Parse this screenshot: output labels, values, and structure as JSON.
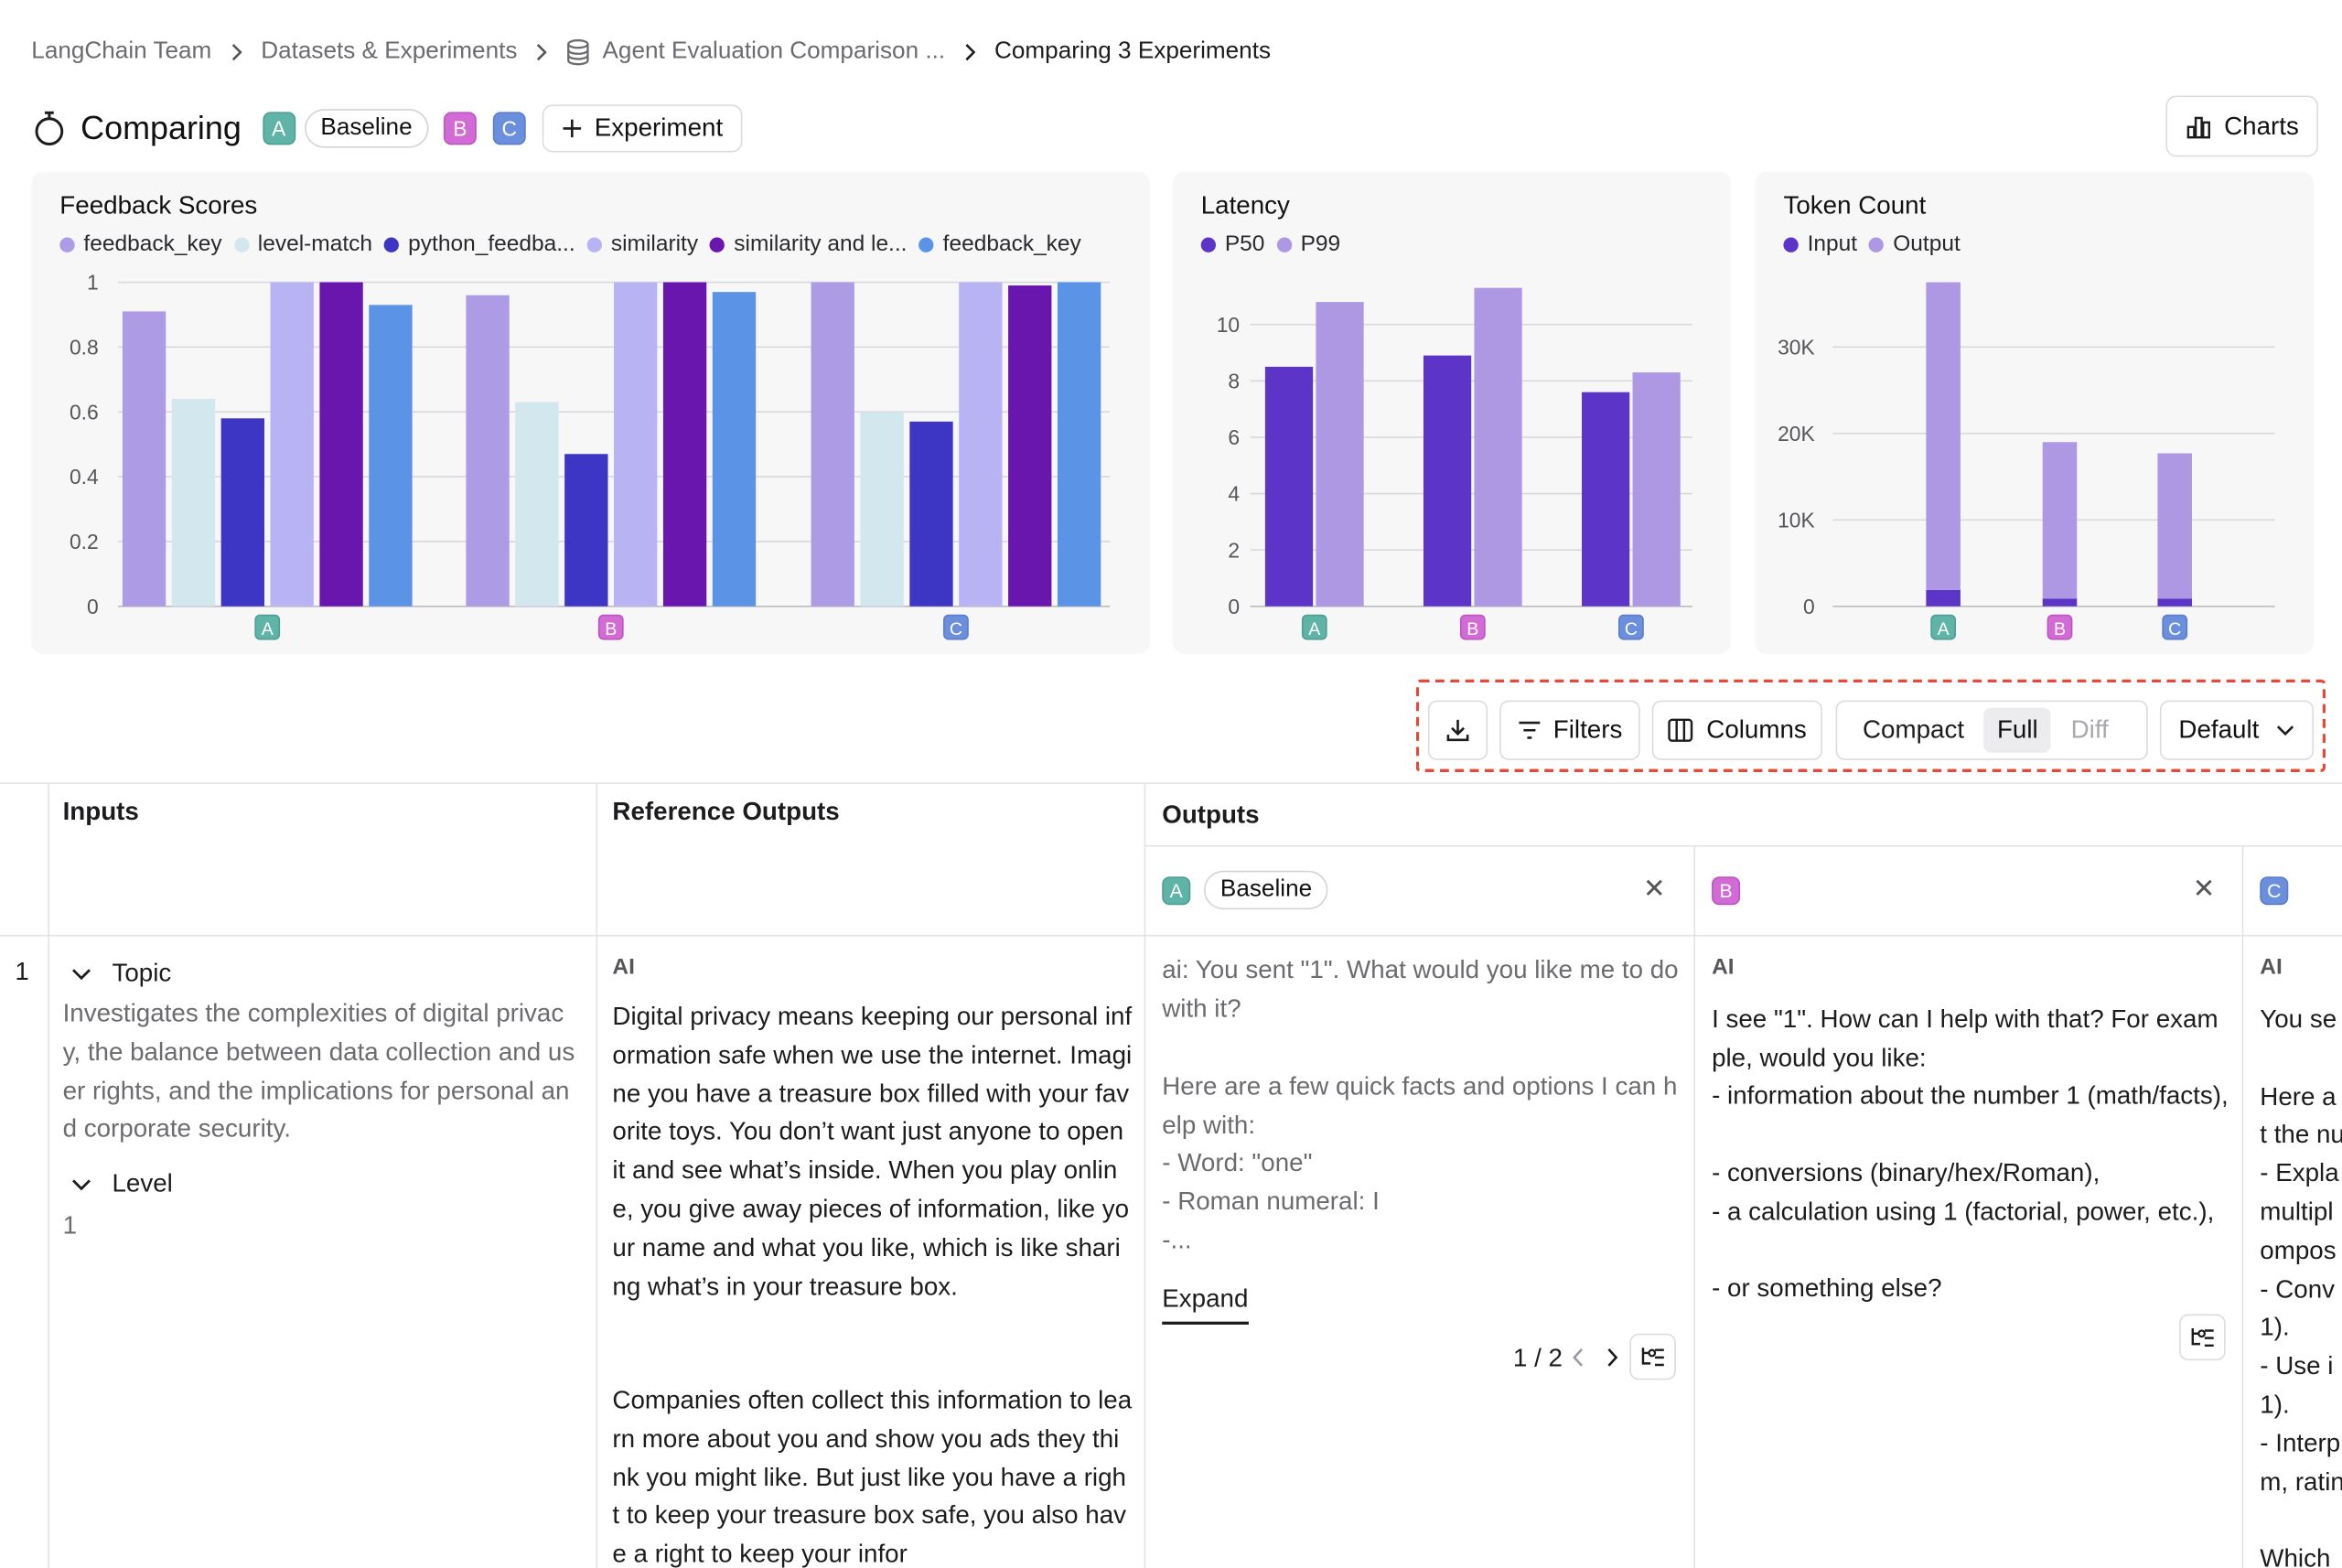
{
  "breadcrumb": {
    "items": [
      "LangChain Team",
      "Datasets & Experiments",
      "Agent Evaluation Comparison ..."
    ],
    "current": "Comparing 3 Experiments"
  },
  "header": {
    "title": "Comparing",
    "experiments": [
      {
        "letter": "A",
        "tag": "Baseline"
      },
      {
        "letter": "B"
      },
      {
        "letter": "C"
      }
    ],
    "add_experiment_label": "Experiment",
    "charts_label": "Charts"
  },
  "chart_data": [
    {
      "type": "bar",
      "title": "Feedback Scores",
      "categories": [
        "A",
        "B",
        "C"
      ],
      "ylim": [
        0,
        1
      ],
      "yticks": [
        "0",
        "0.2",
        "0.4",
        "0.6",
        "0.8",
        "1"
      ],
      "series": [
        {
          "name": "feedback_key",
          "color": "#ae9be6",
          "values": [
            0.91,
            0.96,
            1.0
          ]
        },
        {
          "name": "level-match",
          "color": "#d3e7ee",
          "values": [
            0.64,
            0.63,
            0.6
          ]
        },
        {
          "name": "python_feedba...",
          "color": "#3d35c4",
          "values": [
            0.58,
            0.47,
            0.57
          ]
        },
        {
          "name": "similarity",
          "color": "#b8b4f3",
          "values": [
            1.0,
            1.0,
            1.0
          ]
        },
        {
          "name": "similarity and le...",
          "color": "#6816ad",
          "values": [
            1.0,
            1.0,
            0.99
          ]
        },
        {
          "name": "feedback_key",
          "color": "#5b93e7",
          "values": [
            0.93,
            0.97,
            1.0
          ]
        }
      ]
    },
    {
      "type": "bar",
      "title": "Latency",
      "categories": [
        "A",
        "B",
        "C"
      ],
      "ylim": [
        0,
        11.5
      ],
      "yticks": [
        "0",
        "2",
        "4",
        "6",
        "8",
        "10"
      ],
      "series": [
        {
          "name": "P50",
          "color": "#5c35c8",
          "values": [
            8.5,
            8.9,
            7.6
          ]
        },
        {
          "name": "P99",
          "color": "#ae98e3",
          "values": [
            10.8,
            11.3,
            8.3
          ]
        }
      ]
    },
    {
      "type": "bar",
      "stacked": true,
      "title": "Token Count",
      "categories": [
        "A",
        "B",
        "C"
      ],
      "ylim": [
        0,
        37500
      ],
      "yticks": [
        "0",
        "10K",
        "20K",
        "30K"
      ],
      "series": [
        {
          "name": "Input",
          "color": "#5c35c8",
          "values": [
            1900,
            900,
            900
          ]
        },
        {
          "name": "Output",
          "color": "#ae98e3",
          "values": [
            35600,
            18100,
            16800
          ]
        }
      ]
    }
  ],
  "toolbar": {
    "download_icon": "download-icon",
    "filters_label": "Filters",
    "columns_label": "Columns",
    "view_modes": [
      "Compact",
      "Full",
      "Diff"
    ],
    "active_view_mode": "Full",
    "sort_label": "Default"
  },
  "table": {
    "headers": {
      "inputs": "Inputs",
      "reference": "Reference Outputs",
      "outputs": "Outputs"
    },
    "experiment_columns": [
      {
        "letter": "A",
        "tag": "Baseline"
      },
      {
        "letter": "B"
      },
      {
        "letter": "C"
      }
    ],
    "rows": [
      {
        "index": "1",
        "inputs": {
          "topic_label": "Topic",
          "topic_value": "Investigates the complexities of digital privacy, the balance between data collection and user rights, and the implications for personal and corporate security.",
          "level_label": "Level",
          "level_value": "1"
        },
        "reference": {
          "role": "AI",
          "text1": "Digital privacy means keeping our personal information safe when we use the internet. Imagine you have a treasure box filled with your favorite toys. You don’t want just anyone to open it and see what’s inside. When you play online, you give away pieces of information, like your name and what you like, which is like sharing what’s in your treasure box.",
          "text2": "Companies often collect this information to learn more about you and show you ads they think you might like. But just like you have a right to keep your treasure box safe, you also have a right to keep your infor"
        },
        "output_a": {
          "p1": "ai: You sent \"1\". What would you like me to do with it?",
          "p2": "Here are a few quick facts and options I can help with:",
          "l1": "- Word: \"one\"",
          "l2": "- Roman numeral: I",
          "l3": "-...",
          "expand_label": "Expand",
          "pager": "1 / 2"
        },
        "output_b": {
          "role": "AI",
          "p1": "I see \"1\". How can I help with that? For example, would you like:",
          "l1": "- information about the number 1 (math/facts),",
          "l2": "- conversions (binary/hex/Roman),",
          "l3": "- a calculation using 1 (factorial, power, etc.),",
          "l4": "- or something else?"
        },
        "output_c": {
          "role": "AI",
          "lines": [
            "You se",
            "",
            "Here a",
            "t the nu",
            "- Expla",
            "multipl",
            "ompos",
            "- Conv",
            "1).",
            "- Use i",
            "1).",
            "- Interp",
            "m, ratin",
            "",
            "Which"
          ]
        }
      }
    ]
  }
}
